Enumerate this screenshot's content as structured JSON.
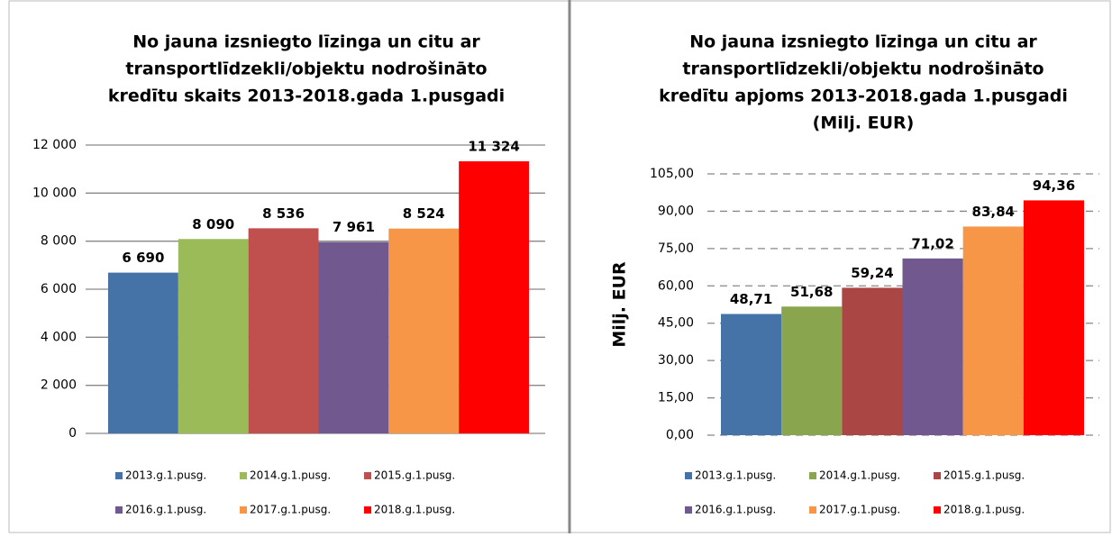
{
  "chart_data": [
    {
      "type": "bar",
      "title": [
        "No jauna izsniegto līzinga un citu ar",
        "transportlīdzekli/objektu  nodrošināto",
        "kredītu skaits 2013-2018.gada 1.pusgadi"
      ],
      "series": [
        {
          "name": "2013.g.1.pusg.",
          "color": "#4572a7",
          "values": [
            6690
          ],
          "value_labels": [
            "6 690"
          ]
        },
        {
          "name": "2014.g.1.pusg.",
          "color": "#9bbb59",
          "values": [
            8090
          ],
          "value_labels": [
            "8 090"
          ]
        },
        {
          "name": "2015.g.1.pusg.",
          "color": "#c0504d",
          "values": [
            8536
          ],
          "value_labels": [
            "8 536"
          ]
        },
        {
          "name": "2016.g.1.pusg.",
          "color": "#71588f",
          "values": [
            7961
          ],
          "value_labels": [
            "7 961"
          ]
        },
        {
          "name": "2017.g.1.pusg.",
          "color": "#f79646",
          "values": [
            8524
          ],
          "value_labels": [
            "8 524"
          ]
        },
        {
          "name": "2018.g.1.pusg.",
          "color": "#ff0000",
          "values": [
            11324
          ],
          "value_labels": [
            "11 324"
          ]
        }
      ],
      "ylim": [
        0,
        12000
      ],
      "yticks": [
        0,
        {
          "value": 2000,
          "label": "2 000"
        },
        {
          "value": 4000,
          "label": "4 000"
        },
        {
          "value": 6000,
          "label": "6 000"
        },
        {
          "value": 8000,
          "label": "8 000"
        },
        {
          "value": 10000,
          "label": "10 000"
        },
        {
          "value": 12000,
          "label": "12 000"
        }
      ],
      "grid": "solid",
      "legend": "bottom"
    },
    {
      "type": "bar",
      "title": [
        "No jauna izsniegto līzinga un citu ar",
        "transportlīdzekli/objektu  nodrošināto",
        "kredītu apjoms 2013-2018.gada 1.pusgadi",
        "(Milj. EUR)"
      ],
      "y_label": "Milj. EUR",
      "series": [
        {
          "name": "2013.g.1.pusg.",
          "color": "#4572a7",
          "values": [
            48.71
          ],
          "value_labels": [
            "48,71"
          ]
        },
        {
          "name": "2014.g.1.pusg.",
          "color": "#89a54e",
          "values": [
            51.68
          ],
          "value_labels": [
            "51,68"
          ]
        },
        {
          "name": "2015.g.1.pusg.",
          "color": "#aa4643",
          "values": [
            59.24
          ],
          "value_labels": [
            "59,24"
          ]
        },
        {
          "name": "2016.g.1.pusg.",
          "color": "#71588f",
          "values": [
            71.02
          ],
          "value_labels": [
            "71,02"
          ]
        },
        {
          "name": "2017.g.1.pusg.",
          "color": "#f79646",
          "values": [
            83.84
          ],
          "value_labels": [
            "83,84"
          ]
        },
        {
          "name": "2018.g.1.pusg.",
          "color": "#ff0000",
          "values": [
            94.36
          ],
          "value_labels": [
            "94,36"
          ]
        }
      ],
      "ylim": [
        0,
        105
      ],
      "yticks": [
        {
          "value": 0,
          "label": "0,00"
        },
        {
          "value": 15,
          "label": "15,00"
        },
        {
          "value": 30,
          "label": "30,00"
        },
        {
          "value": 45,
          "label": "45,00"
        },
        {
          "value": 60,
          "label": "60,00"
        },
        {
          "value": 75,
          "label": "75,00"
        },
        {
          "value": 90,
          "label": "90,00"
        },
        {
          "value": 105,
          "label": "105,00"
        }
      ],
      "grid": "dashed",
      "legend": "bottom"
    }
  ]
}
